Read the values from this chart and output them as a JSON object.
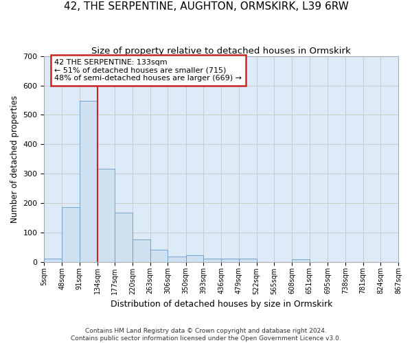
{
  "title": "42, THE SERPENTINE, AUGHTON, ORMSKIRK, L39 6RW",
  "subtitle": "Size of property relative to detached houses in Ormskirk",
  "xlabel": "Distribution of detached houses by size in Ormskirk",
  "ylabel": "Number of detached properties",
  "footnote1": "Contains HM Land Registry data © Crown copyright and database right 2024.",
  "footnote2": "Contains public sector information licensed under the Open Government Licence v3.0.",
  "annotation_line1": "42 THE SERPENTINE: 133sqm",
  "annotation_line2": "← 51% of detached houses are smaller (715)",
  "annotation_line3": "48% of semi-detached houses are larger (669) →",
  "bar_color": "#cfe0f0",
  "bar_edge_color": "#6699cc",
  "grid_color": "#cccccc",
  "bg_color": "#ddeaf7",
  "vline_color": "#cc2222",
  "vline_x": 134,
  "bin_edges": [
    5,
    48,
    91,
    134,
    177,
    220,
    263,
    306,
    350,
    393,
    436,
    479,
    522,
    565,
    608,
    651,
    695,
    738,
    781,
    824,
    867
  ],
  "bar_heights": [
    10,
    185,
    548,
    316,
    168,
    75,
    40,
    17,
    22,
    11,
    11,
    11,
    0,
    0,
    8,
    0,
    0,
    0,
    0,
    0
  ],
  "ylim": [
    0,
    700
  ],
  "yticks": [
    0,
    100,
    200,
    300,
    400,
    500,
    600,
    700
  ],
  "annotation_box_color": "white",
  "annotation_box_edge": "#cc2222",
  "title_fontsize": 11,
  "subtitle_fontsize": 9.5
}
